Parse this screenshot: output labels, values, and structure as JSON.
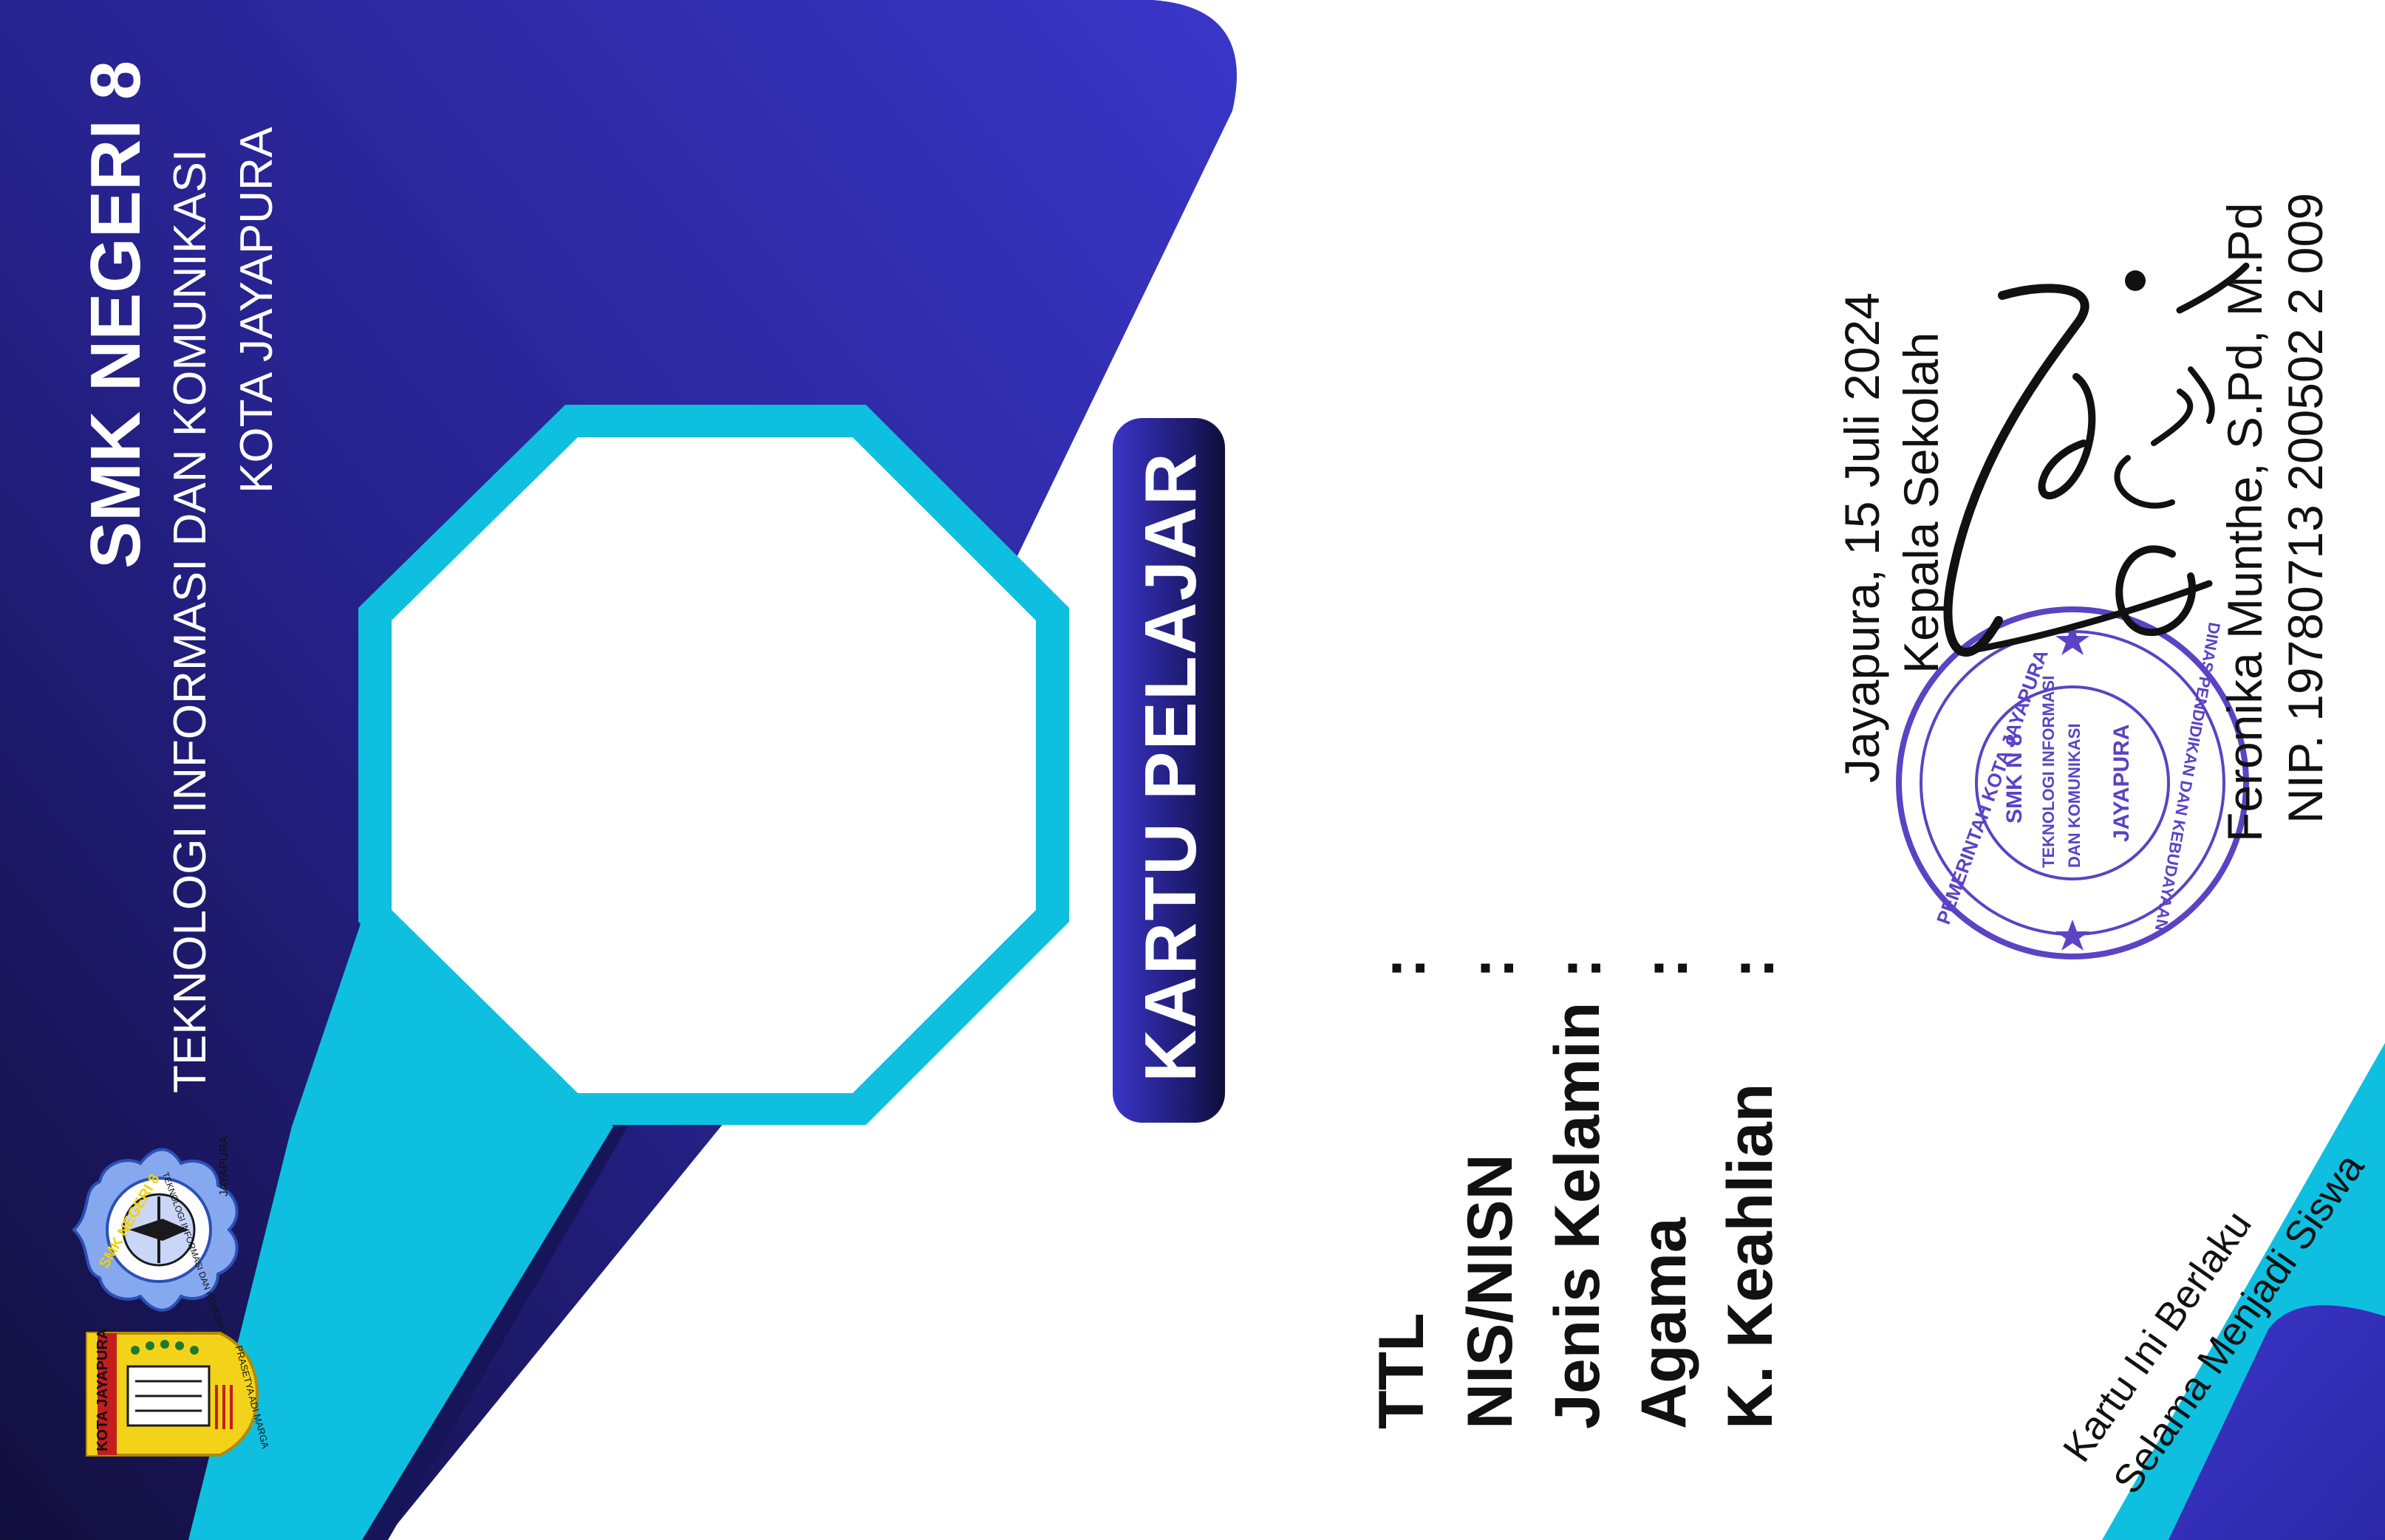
{
  "school": {
    "name": "SMK NEGERI 8",
    "program": "TEKNOLOGI INFORMASI DAN KOMUNIKASI",
    "city": "KOTA JAYAPURA"
  },
  "card": {
    "title": "KARTU PELAJAR"
  },
  "fields": [
    {
      "label": "TTL",
      "colon": ":"
    },
    {
      "label": "NIS/NISN",
      "colon": ":"
    },
    {
      "label": "Jenis Kelamin",
      "colon": ":"
    },
    {
      "label": "Agama",
      "colon": ":"
    },
    {
      "label": "K. Keahlian",
      "colon": ":"
    }
  ],
  "signature": {
    "place_date": "Jayapura,  15 Juli 2024",
    "position": "Kepala Sekolah",
    "name": "Feronika Munthe, S.Pd, M.Pd",
    "nip": "NIP. 19780713 200502 2 009"
  },
  "stamp": {
    "outer_top": "PEMERINTAH KOTA JAYAPURA",
    "outer_bottom": "DINAS PENDIDIKAN DAN KEBUDAYAAN",
    "inner_1": "SMK N 8",
    "inner_2": "TEKNOLOGI INFORMASI",
    "inner_3": "DAN KOMUNIKASI",
    "inner_4": "JAYAPURA"
  },
  "validity": {
    "line1": "Kartu Ini Berlaku",
    "line2": "Selama Menjadi Siswa"
  },
  "logos": {
    "school_logo": {
      "icon": "school-emblem-icon",
      "top": "SMK NEGERI 8",
      "ring": "TEKNOLOGI INFORMASI DAN KOMUNIKASI",
      "city": "JAYAPURA"
    },
    "city_logo": {
      "icon": "city-emblem-icon",
      "label": "KOTA JAYAPURA",
      "motto": "PRASETYA ADI MARGA"
    }
  },
  "colors": {
    "navy": "#1c1a6a",
    "royal_blue": "#3a34c9",
    "cyan": "#0fbfdf",
    "stamp_purple": "#5a43c4"
  }
}
